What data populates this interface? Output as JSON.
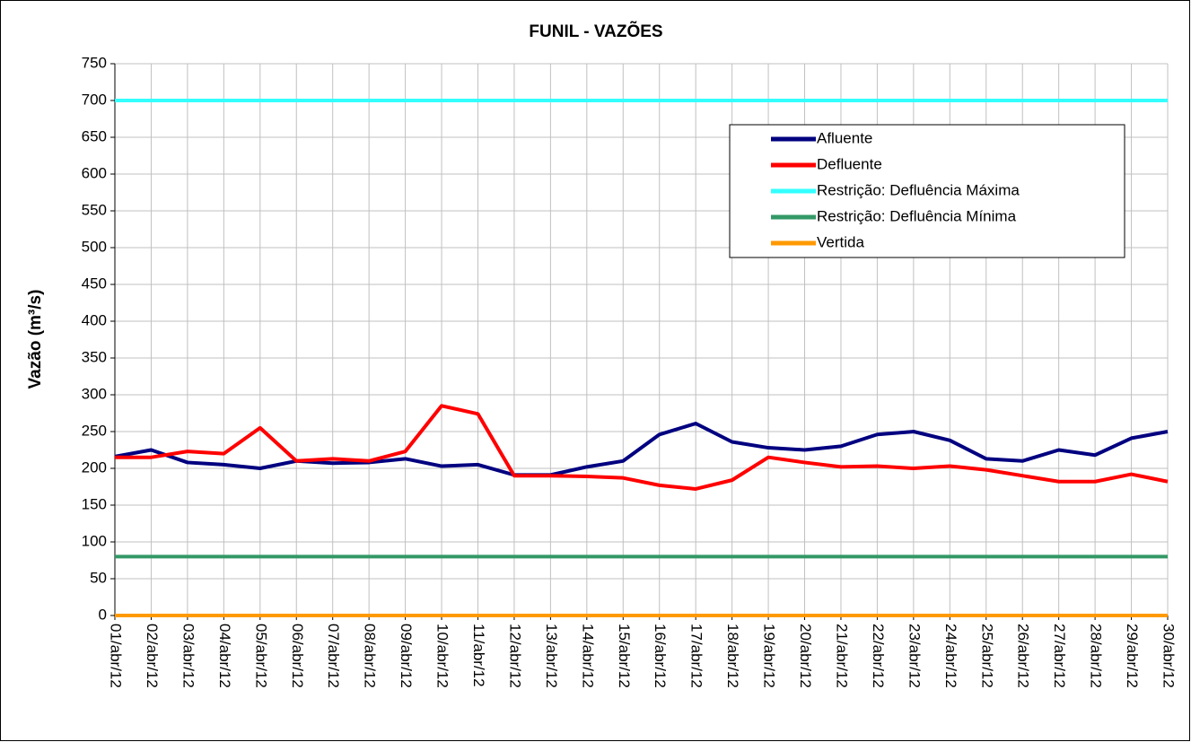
{
  "chart_data": {
    "type": "line",
    "title": "FUNIL - VAZÕES",
    "y_label": "Vazão (m³/s)",
    "categories": [
      "01/abr/12",
      "02/abr/12",
      "03/abr/12",
      "04/abr/12",
      "05/abr/12",
      "06/abr/12",
      "07/abr/12",
      "08/abr/12",
      "09/abr/12",
      "10/abr/12",
      "11/abr/12",
      "12/abr/12",
      "13/abr/12",
      "14/abr/12",
      "15/abr/12",
      "16/abr/12",
      "17/abr/12",
      "18/abr/12",
      "19/abr/12",
      "20/abr/12",
      "21/abr/12",
      "22/abr/12",
      "23/abr/12",
      "24/abr/12",
      "25/abr/12",
      "26/abr/12",
      "27/abr/12",
      "28/abr/12",
      "29/abr/12",
      "30/abr/12"
    ],
    "series": [
      {
        "name": "Afluente",
        "color": "#000080",
        "values": [
          216,
          225,
          208,
          205,
          200,
          210,
          207,
          208,
          213,
          203,
          205,
          191,
          191,
          202,
          210,
          246,
          261,
          236,
          228,
          225,
          230,
          246,
          250,
          238,
          213,
          210,
          225,
          218,
          241,
          250
        ]
      },
      {
        "name": "Defluente",
        "color": "#ff0000",
        "values": [
          215,
          215,
          223,
          220,
          255,
          210,
          213,
          210,
          223,
          285,
          274,
          190,
          190,
          189,
          187,
          177,
          172,
          184,
          215,
          208,
          202,
          203,
          200,
          203,
          198,
          190,
          182,
          182,
          192,
          182
        ]
      },
      {
        "name": "Restrição: Defluência Máxima",
        "color": "#33ffff",
        "values": [
          700,
          700,
          700,
          700,
          700,
          700,
          700,
          700,
          700,
          700,
          700,
          700,
          700,
          700,
          700,
          700,
          700,
          700,
          700,
          700,
          700,
          700,
          700,
          700,
          700,
          700,
          700,
          700,
          700,
          700
        ]
      },
      {
        "name": "Restrição: Defluência Mínima",
        "color": "#339966",
        "values": [
          80,
          80,
          80,
          80,
          80,
          80,
          80,
          80,
          80,
          80,
          80,
          80,
          80,
          80,
          80,
          80,
          80,
          80,
          80,
          80,
          80,
          80,
          80,
          80,
          80,
          80,
          80,
          80,
          80,
          80
        ]
      },
      {
        "name": "Vertida",
        "color": "#ff9900",
        "values": [
          0,
          0,
          0,
          0,
          0,
          0,
          0,
          0,
          0,
          0,
          0,
          0,
          0,
          0,
          0,
          0,
          0,
          0,
          0,
          0,
          0,
          0,
          0,
          0,
          0,
          0,
          0,
          0,
          0,
          0
        ]
      }
    ],
    "ylim": [
      0,
      750
    ],
    "yticks": [
      0,
      50,
      100,
      150,
      200,
      250,
      300,
      350,
      400,
      450,
      500,
      550,
      600,
      650,
      700,
      750
    ],
    "grid": true,
    "legend": "upper right"
  }
}
